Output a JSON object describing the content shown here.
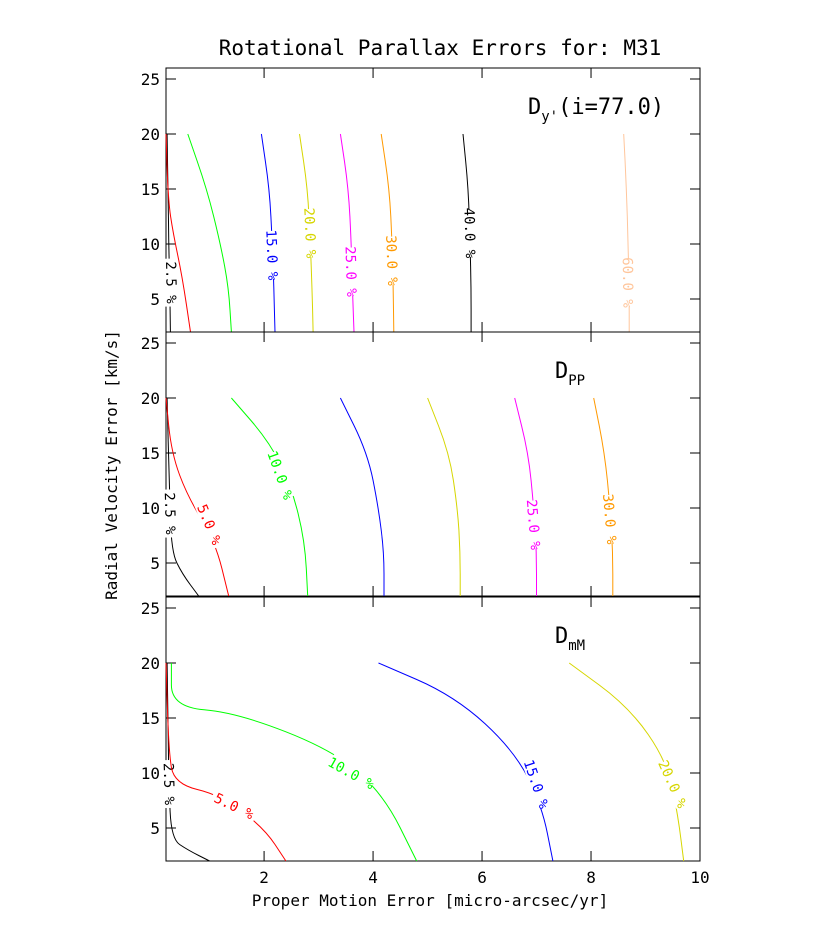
{
  "chart_data": {
    "type": "line",
    "title": "Rotational Parallax Errors for: M31",
    "xlabel": "Proper Motion Error [micro-arcsec/yr]",
    "ylabel": "Radial Velocity Error [km/s]",
    "xlim": [
      0.2,
      10
    ],
    "ylim": [
      2,
      26
    ],
    "x_ticks": [
      "2",
      "4",
      "6",
      "8",
      "10"
    ],
    "y_ticks": [
      "5",
      "10",
      "15",
      "20",
      "25"
    ],
    "colors": {
      "black": "#000000",
      "red": "#ff0000",
      "green": "#00ff00",
      "blue": "#0000ff",
      "yellow": "#d6d600",
      "magenta": "#ff00ff",
      "orange": "#ff9900",
      "peach": "#ffc69c"
    },
    "panels": [
      {
        "label_main": "D",
        "label_sub": "y'",
        "label_suffix": "(i=77.0)",
        "contours": [
          {
            "level": "2.5 %",
            "color": "black",
            "points": [
              [
                0.22,
                20
              ],
              [
                0.24,
                14
              ],
              [
                0.25,
                10
              ],
              [
                0.27,
                6
              ],
              [
                0.28,
                2
              ]
            ],
            "label_at": [
              0.3,
              6.5
            ]
          },
          {
            "level": "",
            "color": "red",
            "points": [
              [
                0.2,
                20
              ],
              [
                0.24,
                14
              ],
              [
                0.33,
                11
              ],
              [
                0.5,
                7
              ],
              [
                0.65,
                2
              ]
            ]
          },
          {
            "level": "",
            "color": "green",
            "points": [
              [
                0.6,
                20
              ],
              [
                0.95,
                15
              ],
              [
                1.2,
                10
              ],
              [
                1.35,
                6
              ],
              [
                1.4,
                2
              ]
            ]
          },
          {
            "level": "15.0 %",
            "color": "blue",
            "points": [
              [
                1.95,
                20
              ],
              [
                2.1,
                15
              ],
              [
                2.15,
                10
              ],
              [
                2.18,
                6
              ],
              [
                2.2,
                2
              ]
            ],
            "label_at": [
              2.15,
              9
            ]
          },
          {
            "level": "20.0 %",
            "color": "yellow",
            "points": [
              [
                2.65,
                20
              ],
              [
                2.8,
                15
              ],
              [
                2.85,
                10
              ],
              [
                2.88,
                6
              ],
              [
                2.9,
                2
              ]
            ],
            "label_at": [
              2.85,
              11
            ]
          },
          {
            "level": "25.0 %",
            "color": "magenta",
            "points": [
              [
                3.4,
                20
              ],
              [
                3.55,
                15
              ],
              [
                3.6,
                10
              ],
              [
                3.62,
                6
              ],
              [
                3.65,
                2
              ]
            ],
            "label_at": [
              3.6,
              7.5
            ]
          },
          {
            "level": "30.0 %",
            "color": "orange",
            "points": [
              [
                4.15,
                20
              ],
              [
                4.3,
                15
              ],
              [
                4.35,
                10
              ],
              [
                4.37,
                6
              ],
              [
                4.38,
                2
              ]
            ],
            "label_at": [
              4.35,
              8.5
            ]
          },
          {
            "level": "40.0 %",
            "color": "black",
            "points": [
              [
                5.65,
                20
              ],
              [
                5.75,
                15
              ],
              [
                5.78,
                10
              ],
              [
                5.8,
                6
              ],
              [
                5.8,
                2
              ]
            ],
            "label_at": [
              5.78,
              11
            ]
          },
          {
            "level": "60.0 %",
            "color": "peach",
            "points": [
              [
                8.6,
                20
              ],
              [
                8.65,
                15
              ],
              [
                8.68,
                10
              ],
              [
                8.7,
                6
              ],
              [
                8.7,
                2
              ]
            ],
            "label_at": [
              8.68,
              6.5
            ]
          }
        ]
      },
      {
        "label_main": "D",
        "label_sub": "PP",
        "label_suffix": "",
        "contours": [
          {
            "level": "2.5 %",
            "color": "black",
            "points": [
              [
                0.22,
                20
              ],
              [
                0.26,
                12
              ],
              [
                0.3,
                6
              ],
              [
                0.5,
                4
              ],
              [
                0.8,
                2
              ]
            ],
            "label_at": [
              0.28,
              9.5
            ]
          },
          {
            "level": "5.0 %",
            "color": "red",
            "points": [
              [
                0.2,
                20
              ],
              [
                0.3,
                15
              ],
              [
                0.6,
                11
              ],
              [
                1.1,
                7
              ],
              [
                1.35,
                2
              ]
            ],
            "label_at": [
              1.0,
              8.5
            ]
          },
          {
            "level": "10.0 %",
            "color": "green",
            "points": [
              [
                1.4,
                20
              ],
              [
                2.1,
                16
              ],
              [
                2.5,
                12
              ],
              [
                2.75,
                7
              ],
              [
                2.8,
                2
              ]
            ],
            "label_at": [
              2.3,
              13
            ]
          },
          {
            "level": "",
            "color": "blue",
            "points": [
              [
                3.4,
                20
              ],
              [
                3.9,
                15
              ],
              [
                4.1,
                10
              ],
              [
                4.2,
                6
              ],
              [
                4.2,
                2
              ]
            ]
          },
          {
            "level": "",
            "color": "yellow",
            "points": [
              [
                5.0,
                20
              ],
              [
                5.4,
                15
              ],
              [
                5.55,
                10
              ],
              [
                5.6,
                6
              ],
              [
                5.6,
                2
              ]
            ]
          },
          {
            "level": "25.0 %",
            "color": "magenta",
            "points": [
              [
                6.6,
                20
              ],
              [
                6.85,
                15
              ],
              [
                6.95,
                10
              ],
              [
                7.0,
                6
              ],
              [
                7.0,
                2
              ]
            ],
            "label_at": [
              6.95,
              8.5
            ]
          },
          {
            "level": "30.0 %",
            "color": "orange",
            "points": [
              [
                8.05,
                20
              ],
              [
                8.25,
                15
              ],
              [
                8.35,
                10
              ],
              [
                8.4,
                6
              ],
              [
                8.4,
                2
              ]
            ],
            "label_at": [
              8.35,
              9
            ]
          }
        ]
      },
      {
        "label_main": "D",
        "label_sub": "mM",
        "label_suffix": "",
        "contours": [
          {
            "level": "2.5 %",
            "color": "black",
            "points": [
              [
                0.22,
                20
              ],
              [
                0.24,
                14
              ],
              [
                0.25,
                9
              ],
              [
                0.3,
                4
              ],
              [
                0.6,
                3
              ],
              [
                1.0,
                2
              ]
            ],
            "label_at": [
              0.26,
              9
            ]
          },
          {
            "level": "5.0 %",
            "color": "red",
            "points": [
              [
                0.2,
                20
              ],
              [
                0.25,
                12
              ],
              [
                0.35,
                9
              ],
              [
                1.2,
                8
              ],
              [
                2.0,
                5
              ],
              [
                2.4,
                2
              ]
            ],
            "label_at": [
              1.45,
              7
            ]
          },
          {
            "level": "10.0 %",
            "color": "green",
            "points": [
              [
                0.3,
                20
              ],
              [
                0.3,
                16
              ],
              [
                1.5,
                15.5
              ],
              [
                3.3,
                12
              ],
              [
                4.2,
                8
              ],
              [
                4.8,
                2
              ]
            ],
            "label_at": [
              3.6,
              10
            ]
          },
          {
            "level": "15.0 %",
            "color": "blue",
            "points": [
              [
                4.1,
                20
              ],
              [
                5.5,
                17
              ],
              [
                6.6,
                12
              ],
              [
                7.1,
                7
              ],
              [
                7.3,
                2
              ]
            ],
            "label_at": [
              7.0,
              9
            ]
          },
          {
            "level": "20.0 %",
            "color": "yellow",
            "points": [
              [
                7.6,
                20
              ],
              [
                8.7,
                16
              ],
              [
                9.4,
                11
              ],
              [
                9.6,
                6
              ],
              [
                9.7,
                2
              ]
            ],
            "label_at": [
              9.5,
              9
            ]
          }
        ]
      }
    ]
  }
}
